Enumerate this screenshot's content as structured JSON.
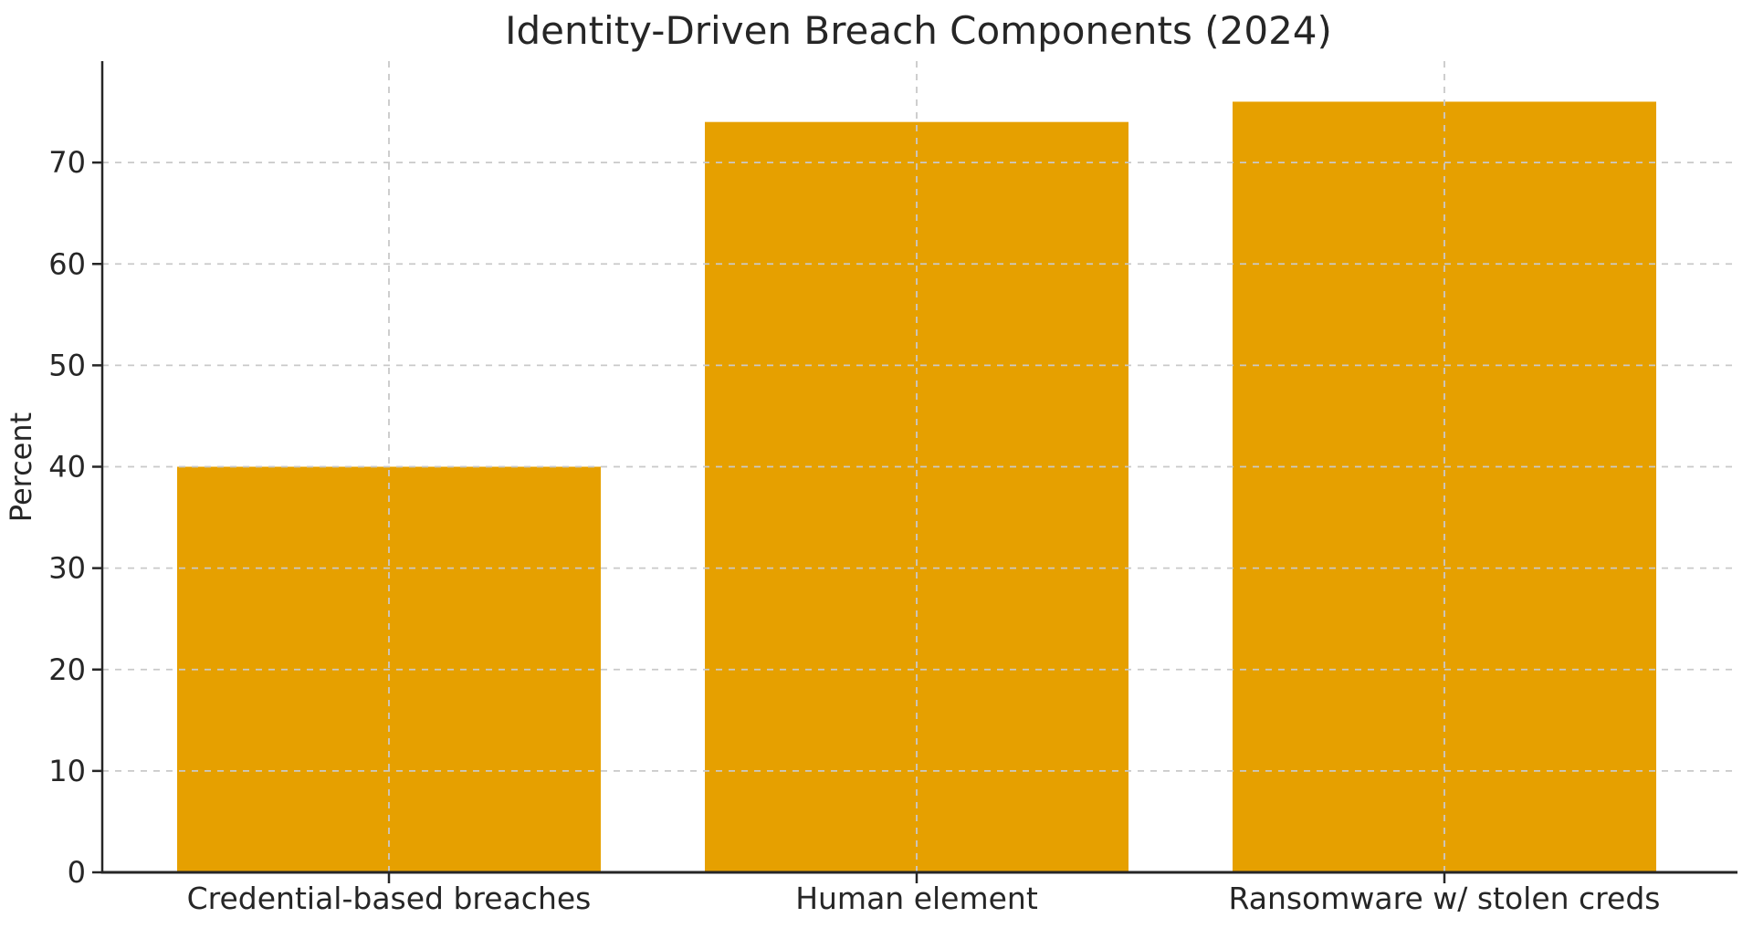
{
  "chart_data": {
    "type": "bar",
    "title": "Identity-Driven Breach Components (2024)",
    "categories": [
      "Credential-based breaches",
      "Human element",
      "Ransomware w/ stolen creds"
    ],
    "values": [
      40,
      74,
      76
    ],
    "xlabel": "",
    "ylabel": "Percent",
    "ylim": [
      0,
      80
    ],
    "yticks": [
      0,
      10,
      20,
      30,
      40,
      50,
      60,
      70
    ],
    "legend": "none",
    "grid": {
      "style": "dashed",
      "horizontal_at_yticks": true,
      "vertical_at_bar_centers": true,
      "drawn_above_bars": true
    },
    "colors": {
      "bar": "#E6A000",
      "grid": "#c9c9c9",
      "axis": "#262626",
      "text": "#262626",
      "background": "#ffffff"
    }
  }
}
